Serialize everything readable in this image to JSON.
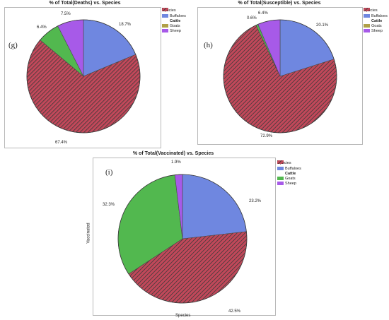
{
  "chart_data": [
    {
      "type": "pie",
      "panel": "(g)",
      "title": "% of Total(Deaths) vs. Species",
      "legend_title": "Species",
      "categories": [
        "Buffaloes",
        "Cattle",
        "Goats",
        "Sheep"
      ],
      "values": [
        18.7,
        67.4,
        6.4,
        7.5
      ],
      "labels": [
        "18.7%",
        "67.4%",
        "6.4%",
        "7.5%"
      ],
      "colors": [
        "#6f87e0",
        "#c2485a",
        "#52b84f",
        "#a75ae8"
      ],
      "legend_placement": "top-right"
    },
    {
      "type": "pie",
      "panel": "(h)",
      "title": "% of Total(Susceptible) vs. Species",
      "legend_title": "Species",
      "categories": [
        "Buffaloes",
        "Cattle",
        "Goats",
        "Sheep"
      ],
      "values": [
        20.1,
        72.9,
        0.6,
        6.4
      ],
      "labels": [
        "20.1%",
        "72.9%",
        "0.6%",
        "6.4%"
      ],
      "colors": [
        "#6f87e0",
        "#c2485a",
        "#52b84f",
        "#a75ae8"
      ],
      "legend_placement": "top-right"
    },
    {
      "type": "pie",
      "panel": "(i)",
      "title": "% of Total(Vaccinated) vs. Species",
      "legend_title": "Species",
      "xlabel": "Species",
      "ylabel": "Vaccinated",
      "categories": [
        "Buffaloes",
        "Cattle",
        "Goats",
        "Sheep"
      ],
      "values": [
        23.2,
        42.5,
        32.3,
        1.9
      ],
      "labels": [
        "23.2%",
        "42.5%",
        "32.3%",
        "1.9%"
      ],
      "colors": [
        "#6f87e0",
        "#c2485a",
        "#52b84f",
        "#a75ae8"
      ],
      "legend_placement": "top-right"
    }
  ]
}
